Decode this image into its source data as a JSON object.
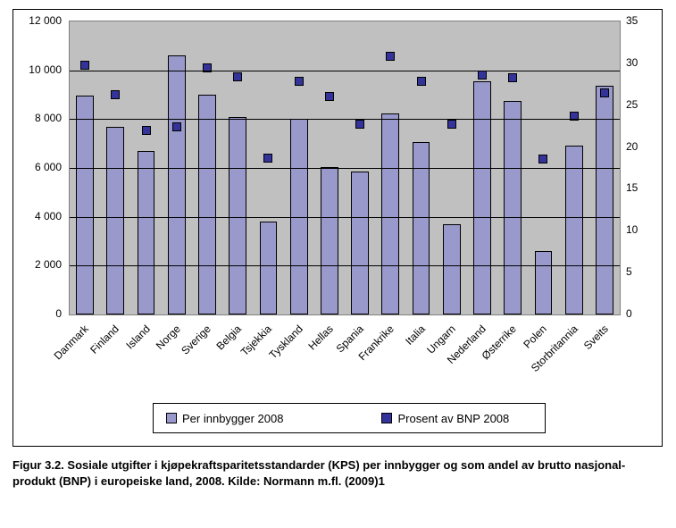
{
  "chart": {
    "type": "bar+scatter",
    "background_color": "#ffffff",
    "plot_background_color": "#c0c0c0",
    "grid_color": "#000000",
    "frame_border_color": "#000000",
    "font_family": "Arial",
    "label_fontsize": 12,
    "categories": [
      "Danmark",
      "Finland",
      "Island",
      "Norge",
      "Sverige",
      "Belgia",
      "Tsjekkia",
      "Tyskland",
      "Hellas",
      "Spania",
      "Frankrike",
      "Italia",
      "Ungarn",
      "Nederland",
      "Østerrike",
      "Polen",
      "Storbritannia",
      "Sveits"
    ],
    "bars": {
      "label": "Per innbygger 2008",
      "color": "#9999cc",
      "border_color": "#000000",
      "bar_width_frac": 0.58,
      "values": [
        8950,
        7700,
        6700,
        10600,
        9000,
        8100,
        3800,
        8000,
        6050,
        5850,
        8250,
        7050,
        3700,
        9550,
        8750,
        2600,
        6900,
        9350
      ]
    },
    "markers": {
      "label": "Prosent av BNP 2008",
      "color": "#333399",
      "border_color": "#000000",
      "shape": "square",
      "size": 10,
      "values": [
        29.8,
        26.2,
        22.0,
        22.4,
        29.5,
        28.4,
        18.7,
        27.8,
        26.0,
        22.7,
        30.8,
        27.8,
        22.7,
        28.6,
        28.3,
        18.6,
        23.7,
        26.5
      ]
    },
    "y_left": {
      "min": 0,
      "max": 12000,
      "step": 2000,
      "tick_format": "space_thousands"
    },
    "y_right": {
      "min": 0,
      "max": 35,
      "step": 5
    },
    "legend": {
      "items": [
        {
          "kind": "bar",
          "label_path": "chart.bars.label",
          "color_path": "chart.bars.color"
        },
        {
          "kind": "marker",
          "label_path": "chart.markers.label",
          "color_path": "chart.markers.color"
        }
      ]
    }
  },
  "caption": "Figur 3.2. Sosiale utgifter i kjøpekraftsparitetsstandarder (KPS) per innbygger og som andel av brutto nasjonal-produkt (BNP) i europeiske land, 2008. Kilde: Normann m.fl. (2009)1"
}
